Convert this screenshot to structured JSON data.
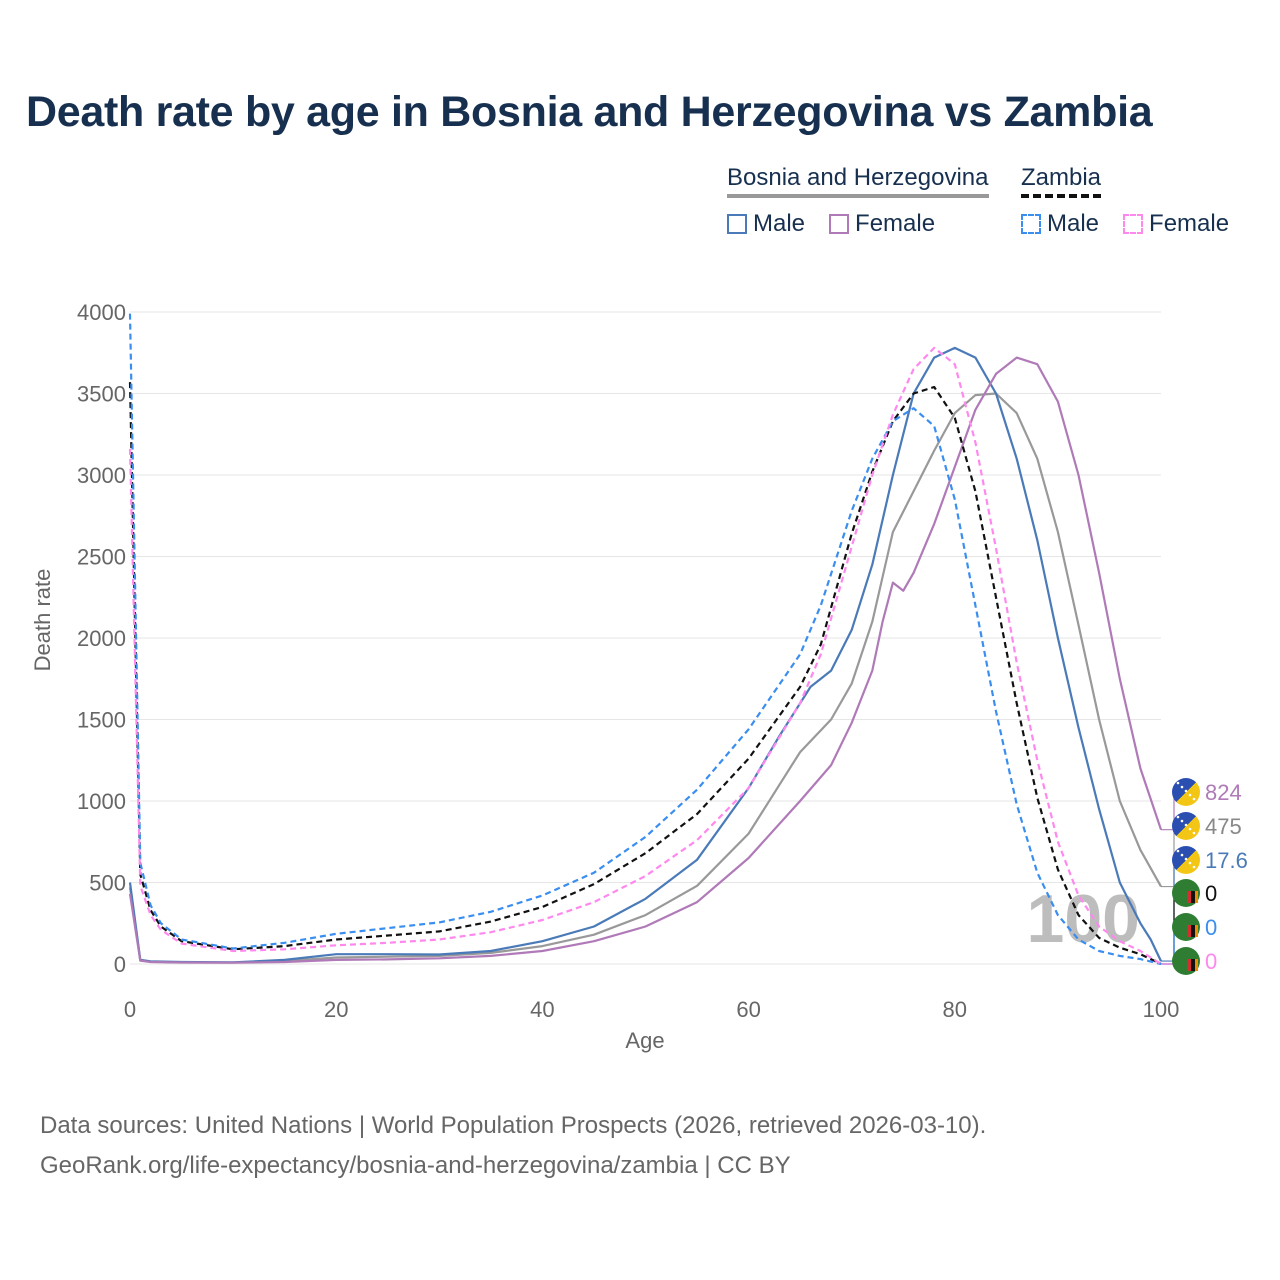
{
  "title": "Death rate by age in Bosnia and Herzegovina vs Zambia",
  "legend": {
    "groups": [
      {
        "country": "Bosnia and Herzegovina",
        "items": [
          {
            "label": "Male",
            "color": "#4a7ab8",
            "dash": false
          },
          {
            "label": "Female",
            "color": "#b07ab8",
            "dash": false
          }
        ]
      },
      {
        "country": "Zambia",
        "items": [
          {
            "label": "Male",
            "color": "#3a8ef0",
            "dash": true
          },
          {
            "label": "Female",
            "color": "#ff88ee",
            "dash": true
          }
        ]
      }
    ]
  },
  "year_watermark": "100",
  "footer": {
    "line1": "Data sources: United Nations | World Population Prospects (2026, retrieved 2026-03-10).",
    "line2": "GeoRank.org/life-expectancy/bosnia-and-herzegovina/zambia | CC BY"
  },
  "chart_data": {
    "type": "line",
    "title": "Death rate by age in Bosnia and Herzegovina vs Zambia",
    "xlabel": "Age",
    "ylabel": "Death rate",
    "xlim": [
      0,
      100
    ],
    "ylim": [
      0,
      4000
    ],
    "xticks": [
      0,
      20,
      40,
      60,
      80,
      100
    ],
    "yticks": [
      0,
      500,
      1000,
      1500,
      2000,
      2500,
      3000,
      3500,
      4000
    ],
    "grid": true,
    "series": [
      {
        "name": "Bosnia and Herzegovina Total",
        "color": "#999999",
        "dash": false,
        "end_label": "475",
        "points": [
          [
            0,
            470
          ],
          [
            1,
            22
          ],
          [
            2,
            14
          ],
          [
            5,
            10
          ],
          [
            10,
            9
          ],
          [
            15,
            18
          ],
          [
            20,
            40
          ],
          [
            25,
            45
          ],
          [
            30,
            50
          ],
          [
            35,
            68
          ],
          [
            40,
            110
          ],
          [
            45,
            180
          ],
          [
            50,
            300
          ],
          [
            55,
            480
          ],
          [
            60,
            800
          ],
          [
            63,
            1100
          ],
          [
            65,
            1300
          ],
          [
            68,
            1500
          ],
          [
            70,
            1720
          ],
          [
            72,
            2100
          ],
          [
            74,
            2650
          ],
          [
            76,
            2900
          ],
          [
            78,
            3150
          ],
          [
            80,
            3380
          ],
          [
            82,
            3490
          ],
          [
            84,
            3500
          ],
          [
            86,
            3380
          ],
          [
            88,
            3100
          ],
          [
            90,
            2650
          ],
          [
            92,
            2080
          ],
          [
            94,
            1500
          ],
          [
            96,
            1000
          ],
          [
            98,
            700
          ],
          [
            100,
            475
          ]
        ]
      },
      {
        "name": "Bosnia and Herzegovina Male",
        "color": "#4a7ab8",
        "dash": false,
        "end_label": "17.6",
        "points": [
          [
            0,
            500
          ],
          [
            1,
            25
          ],
          [
            2,
            16
          ],
          [
            5,
            12
          ],
          [
            10,
            10
          ],
          [
            15,
            25
          ],
          [
            20,
            60
          ],
          [
            25,
            60
          ],
          [
            30,
            58
          ],
          [
            35,
            80
          ],
          [
            40,
            140
          ],
          [
            45,
            230
          ],
          [
            50,
            400
          ],
          [
            55,
            640
          ],
          [
            60,
            1080
          ],
          [
            63,
            1400
          ],
          [
            66,
            1700
          ],
          [
            68,
            1800
          ],
          [
            70,
            2050
          ],
          [
            72,
            2450
          ],
          [
            74,
            3000
          ],
          [
            76,
            3500
          ],
          [
            78,
            3720
          ],
          [
            80,
            3780
          ],
          [
            82,
            3720
          ],
          [
            84,
            3500
          ],
          [
            86,
            3100
          ],
          [
            88,
            2600
          ],
          [
            90,
            2000
          ],
          [
            92,
            1450
          ],
          [
            94,
            950
          ],
          [
            96,
            500
          ],
          [
            98,
            250
          ],
          [
            99,
            150
          ],
          [
            100,
            18
          ]
        ]
      },
      {
        "name": "Bosnia and Herzegovina Female",
        "color": "#b07ab8",
        "dash": false,
        "end_label": "824",
        "points": [
          [
            0,
            430
          ],
          [
            1,
            20
          ],
          [
            2,
            12
          ],
          [
            5,
            9
          ],
          [
            10,
            8
          ],
          [
            15,
            12
          ],
          [
            20,
            25
          ],
          [
            25,
            28
          ],
          [
            30,
            35
          ],
          [
            35,
            50
          ],
          [
            40,
            80
          ],
          [
            45,
            140
          ],
          [
            50,
            230
          ],
          [
            55,
            380
          ],
          [
            60,
            650
          ],
          [
            65,
            1000
          ],
          [
            68,
            1220
          ],
          [
            70,
            1480
          ],
          [
            72,
            1800
          ],
          [
            73,
            2100
          ],
          [
            74,
            2340
          ],
          [
            75,
            2290
          ],
          [
            76,
            2400
          ],
          [
            78,
            2700
          ],
          [
            80,
            3050
          ],
          [
            82,
            3400
          ],
          [
            84,
            3620
          ],
          [
            86,
            3720
          ],
          [
            88,
            3680
          ],
          [
            90,
            3450
          ],
          [
            92,
            3000
          ],
          [
            94,
            2400
          ],
          [
            96,
            1750
          ],
          [
            98,
            1200
          ],
          [
            100,
            824
          ]
        ]
      },
      {
        "name": "Zambia Total",
        "color": "#111111",
        "dash": true,
        "end_label": "0",
        "points": [
          [
            0,
            3570
          ],
          [
            1,
            550
          ],
          [
            2,
            330
          ],
          [
            3,
            230
          ],
          [
            5,
            140
          ],
          [
            10,
            90
          ],
          [
            15,
            110
          ],
          [
            20,
            150
          ],
          [
            25,
            175
          ],
          [
            30,
            200
          ],
          [
            35,
            260
          ],
          [
            40,
            350
          ],
          [
            45,
            490
          ],
          [
            50,
            680
          ],
          [
            55,
            920
          ],
          [
            60,
            1260
          ],
          [
            65,
            1700
          ],
          [
            67,
            1960
          ],
          [
            70,
            2640
          ],
          [
            72,
            3020
          ],
          [
            74,
            3330
          ],
          [
            76,
            3500
          ],
          [
            78,
            3540
          ],
          [
            80,
            3350
          ],
          [
            82,
            2900
          ],
          [
            84,
            2250
          ],
          [
            86,
            1600
          ],
          [
            88,
            1020
          ],
          [
            90,
            580
          ],
          [
            92,
            300
          ],
          [
            94,
            160
          ],
          [
            96,
            100
          ],
          [
            98,
            60
          ],
          [
            100,
            0
          ]
        ]
      },
      {
        "name": "Zambia Male",
        "color": "#3a8ef0",
        "dash": true,
        "end_label": "0",
        "points": [
          [
            0,
            3990
          ],
          [
            1,
            620
          ],
          [
            2,
            360
          ],
          [
            3,
            250
          ],
          [
            5,
            150
          ],
          [
            10,
            95
          ],
          [
            15,
            130
          ],
          [
            20,
            185
          ],
          [
            25,
            220
          ],
          [
            30,
            255
          ],
          [
            35,
            320
          ],
          [
            40,
            420
          ],
          [
            45,
            560
          ],
          [
            50,
            780
          ],
          [
            55,
            1070
          ],
          [
            60,
            1440
          ],
          [
            65,
            1900
          ],
          [
            67,
            2200
          ],
          [
            70,
            2780
          ],
          [
            72,
            3100
          ],
          [
            74,
            3330
          ],
          [
            76,
            3410
          ],
          [
            78,
            3300
          ],
          [
            80,
            2850
          ],
          [
            82,
            2200
          ],
          [
            84,
            1550
          ],
          [
            86,
            980
          ],
          [
            88,
            560
          ],
          [
            90,
            300
          ],
          [
            92,
            150
          ],
          [
            94,
            80
          ],
          [
            96,
            50
          ],
          [
            98,
            30
          ],
          [
            100,
            0
          ]
        ]
      },
      {
        "name": "Zambia Female",
        "color": "#ff88ee",
        "dash": true,
        "end_label": "0",
        "points": [
          [
            0,
            3160
          ],
          [
            1,
            480
          ],
          [
            2,
            300
          ],
          [
            3,
            210
          ],
          [
            5,
            125
          ],
          [
            10,
            80
          ],
          [
            15,
            90
          ],
          [
            20,
            115
          ],
          [
            25,
            130
          ],
          [
            30,
            150
          ],
          [
            35,
            195
          ],
          [
            40,
            270
          ],
          [
            45,
            380
          ],
          [
            50,
            540
          ],
          [
            55,
            760
          ],
          [
            60,
            1080
          ],
          [
            65,
            1600
          ],
          [
            67,
            1900
          ],
          [
            70,
            2560
          ],
          [
            72,
            3000
          ],
          [
            74,
            3370
          ],
          [
            76,
            3650
          ],
          [
            78,
            3780
          ],
          [
            80,
            3680
          ],
          [
            82,
            3200
          ],
          [
            84,
            2550
          ],
          [
            86,
            1850
          ],
          [
            88,
            1250
          ],
          [
            90,
            750
          ],
          [
            92,
            420
          ],
          [
            94,
            230
          ],
          [
            96,
            140
          ],
          [
            98,
            80
          ],
          [
            100,
            0
          ]
        ]
      }
    ]
  }
}
